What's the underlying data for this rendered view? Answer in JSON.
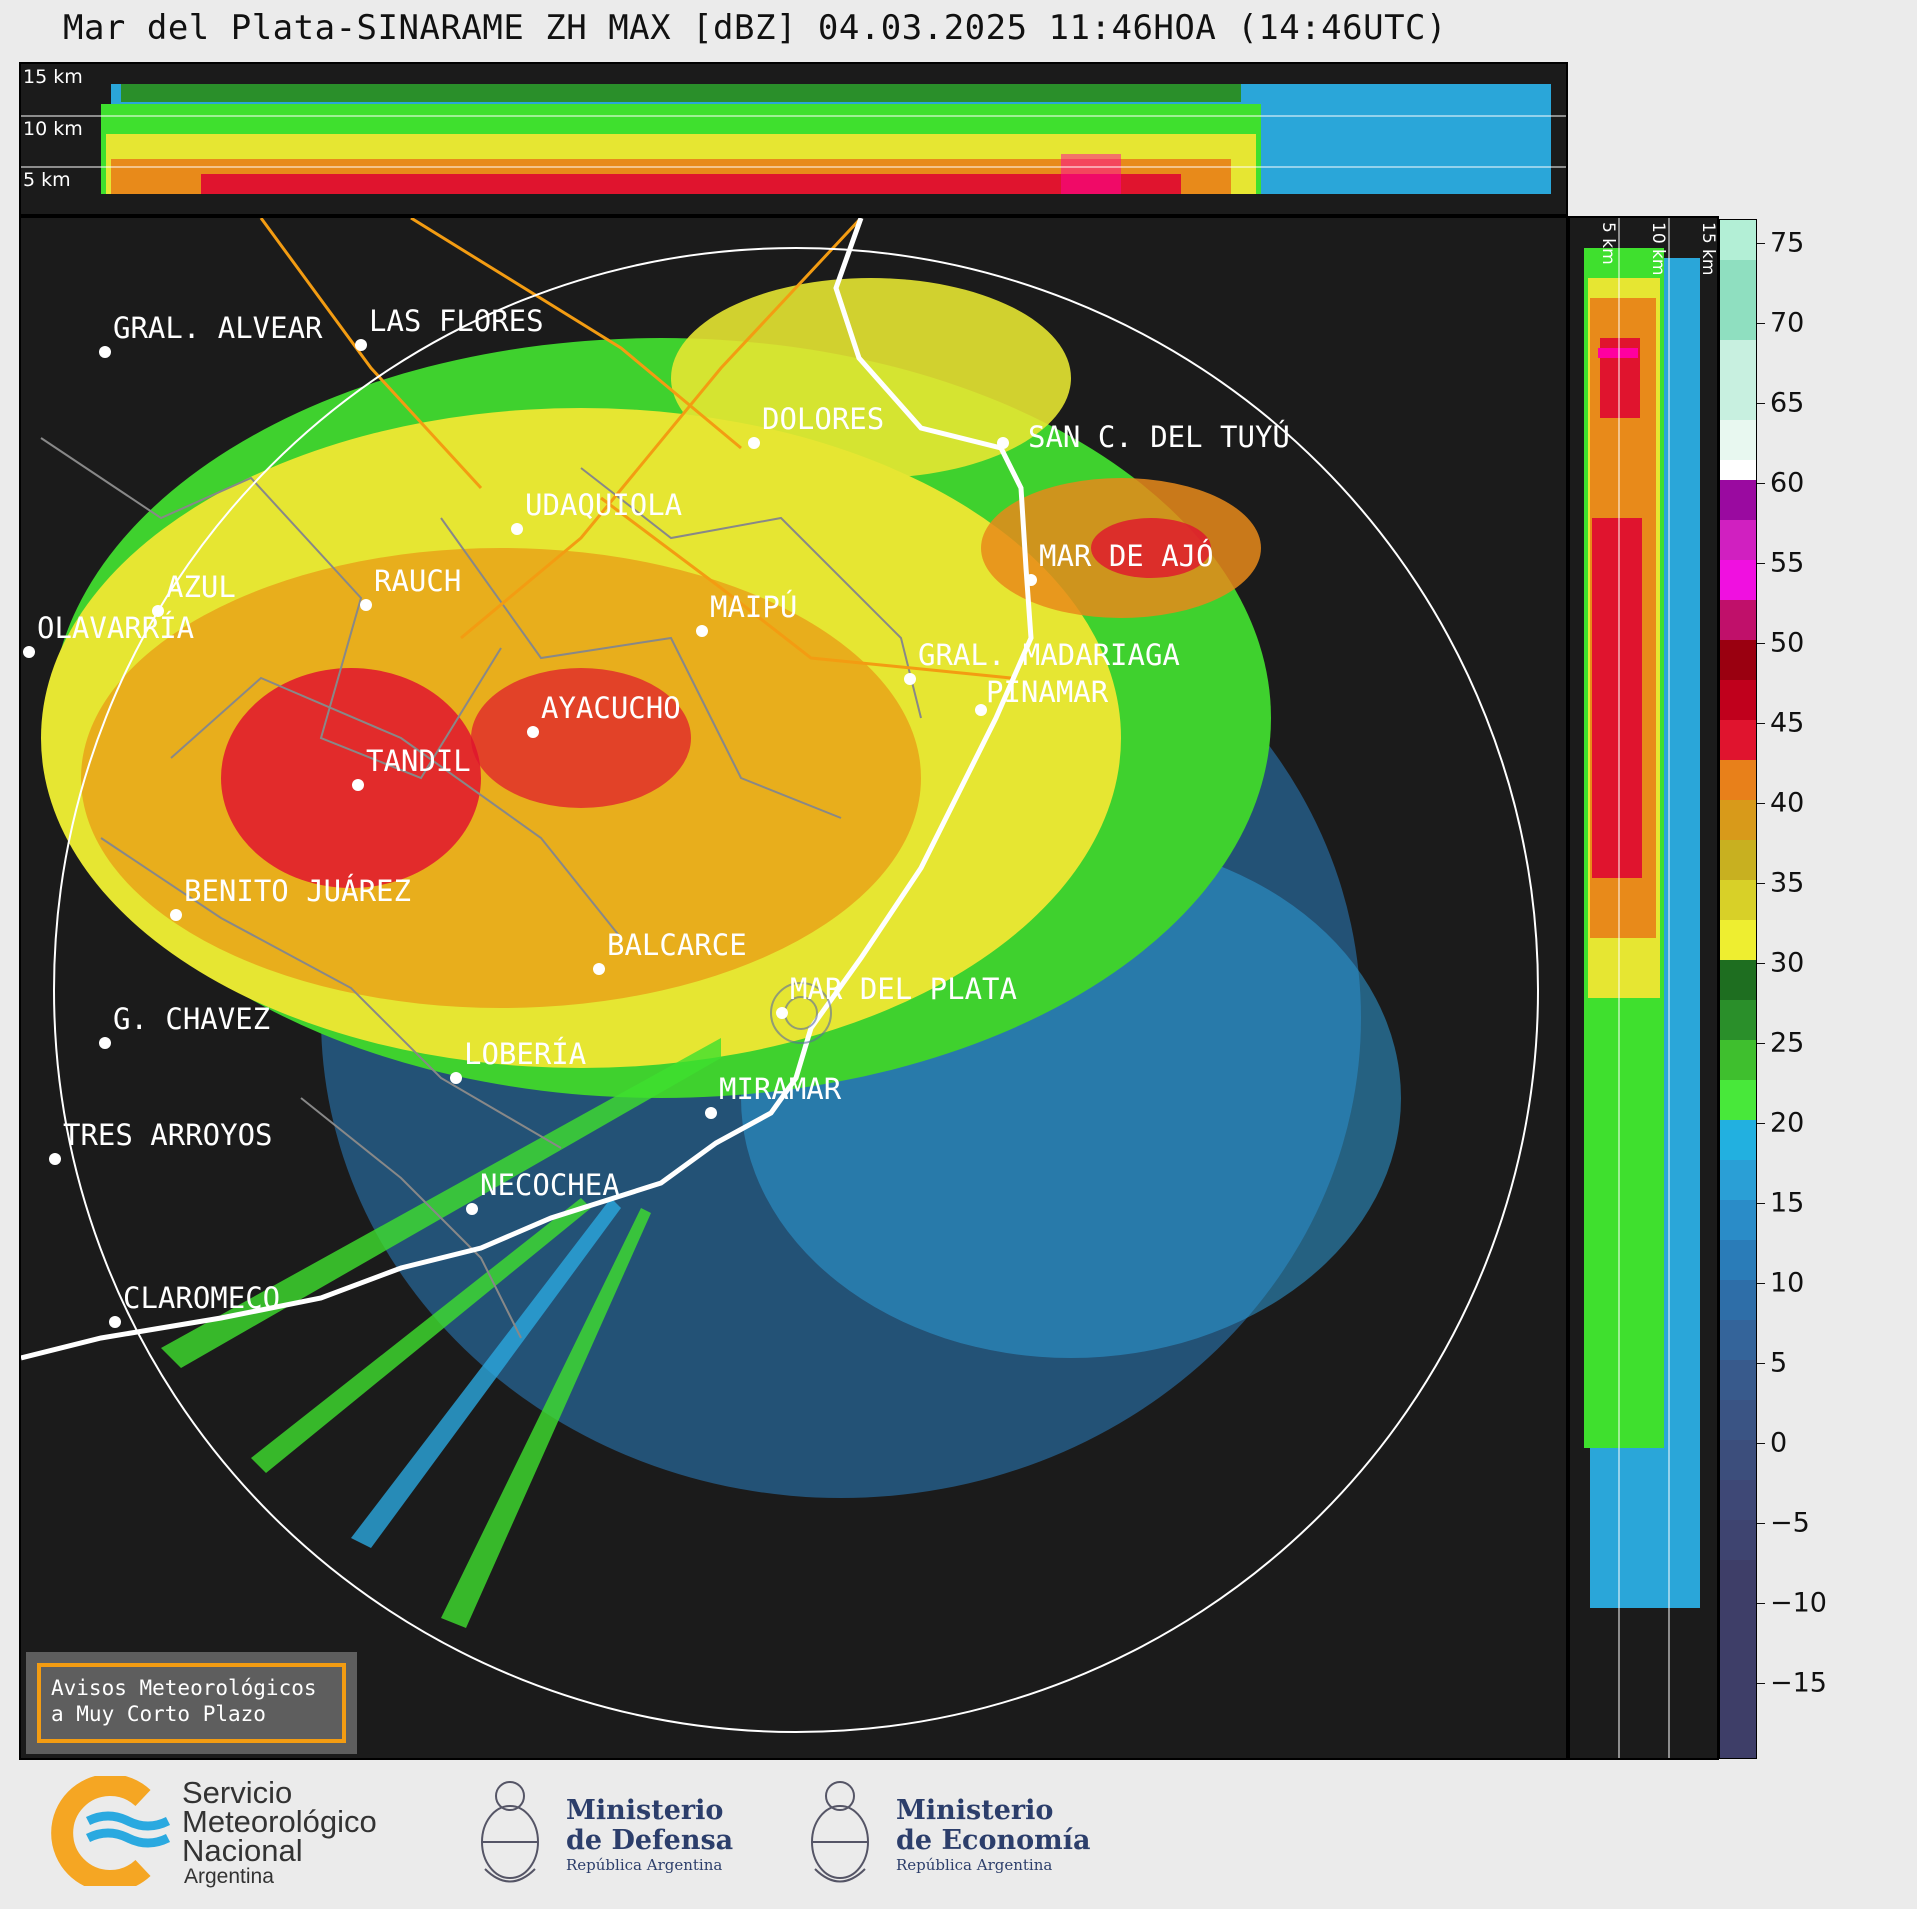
{
  "title": "Mar del Plata-SINARAME ZH MAX [dBZ] 04.03.2025 11:46HOA (14:46UTC)",
  "height_panel": {
    "labels": [
      "15 km",
      "10 km",
      "5 km"
    ]
  },
  "side_panel": {
    "labels": [
      "5 km",
      "10 km",
      "15 km"
    ]
  },
  "colorbar": {
    "unit": "dBZ",
    "ticks": [
      "75",
      "70",
      "65",
      "60",
      "55",
      "50",
      "45",
      "40",
      "35",
      "30",
      "25",
      "20",
      "15",
      "10",
      "5",
      "0",
      "−5",
      "−10",
      "−15"
    ],
    "range": [
      -20,
      77
    ]
  },
  "map": {
    "radar_site": "MAR DEL PLATA",
    "cities": [
      {
        "name": "GRAL. ALVEAR"
      },
      {
        "name": "LAS FLORES"
      },
      {
        "name": "DOLORES"
      },
      {
        "name": "SAN C. DEL TUYÚ"
      },
      {
        "name": "UDAQUIOLA"
      },
      {
        "name": "AZUL"
      },
      {
        "name": "OLAVARRÍA"
      },
      {
        "name": "RAUCH"
      },
      {
        "name": "MAIPÚ"
      },
      {
        "name": "MAR DE AJÓ"
      },
      {
        "name": "GRAL. MADARIAGA"
      },
      {
        "name": "PINAMAR"
      },
      {
        "name": "AYACUCHO"
      },
      {
        "name": "TANDIL"
      },
      {
        "name": "BENITO JUÁREZ"
      },
      {
        "name": "BALCARCE"
      },
      {
        "name": "MAR DEL PLATA"
      },
      {
        "name": "G. CHAVEZ"
      },
      {
        "name": "LOBERÍA"
      },
      {
        "name": "MIRAMAR"
      },
      {
        "name": "TRES ARROYOS"
      },
      {
        "name": "NECOCHEA"
      },
      {
        "name": "CLAROMECO"
      }
    ]
  },
  "aviso": {
    "line1": "Avisos Meteorológicos",
    "line2": "a Muy Corto Plazo"
  },
  "footer": {
    "smn": {
      "line1": "Servicio",
      "line2": "Meteorológico",
      "line3": "Nacional",
      "line4": "Argentina"
    },
    "defensa": {
      "line1": "Ministerio",
      "line2": "de Defensa",
      "line3": "República Argentina"
    },
    "economia": {
      "line1": "Ministerio",
      "line2": "de Economía",
      "line3": "República Argentina"
    }
  },
  "colors": {
    "background": "#1b1b1b",
    "range_ring": "#ffffff",
    "coastline": "#ffffff",
    "roads": "#f39c12",
    "partidos": "#888888",
    "aviso_border": "#f39c12"
  }
}
